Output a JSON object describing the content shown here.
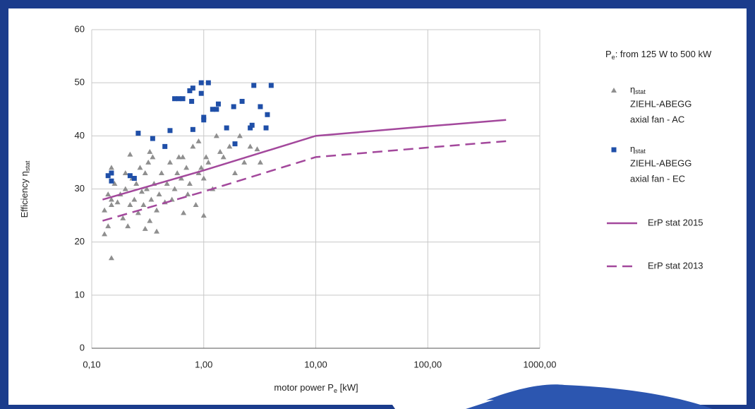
{
  "chart_data": {
    "type": "scatter-line",
    "x_scale": "log",
    "grid": true,
    "xlim": [
      0.1,
      1000
    ],
    "ylim": [
      0,
      60
    ],
    "xticks": [
      {
        "value": 0.1,
        "label": "0,10"
      },
      {
        "value": 1,
        "label": "1,00"
      },
      {
        "value": 10,
        "label": "10,00"
      },
      {
        "value": 100,
        "label": "100,00"
      },
      {
        "value": 1000,
        "label": "1000,00"
      }
    ],
    "yticks": [
      0,
      10,
      20,
      30,
      40,
      50,
      60
    ],
    "y_label": {
      "main": "Efficiency η",
      "sub": "stat"
    },
    "x_label": {
      "main": "motor power P",
      "sub": "e",
      "tail": " [kW]"
    },
    "legend_title": {
      "main": "P",
      "sub": "e",
      "tail": ": from 125 W to 500 kW"
    },
    "series": [
      {
        "kind": "scatter",
        "marker": "triangle",
        "color": "#8f8f8f",
        "name_symbol": "η",
        "name_sub": "stat",
        "name_lines": [
          "ZIEHL-ABEGG",
          "axial fan - AC"
        ],
        "x": [
          0.13,
          0.13,
          0.14,
          0.14,
          0.15,
          0.15,
          0.15,
          0.16,
          0.17,
          0.18,
          0.19,
          0.2,
          0.2,
          0.21,
          0.22,
          0.22,
          0.23,
          0.24,
          0.25,
          0.26,
          0.27,
          0.28,
          0.29,
          0.3,
          0.3,
          0.31,
          0.32,
          0.33,
          0.34,
          0.35,
          0.36,
          0.38,
          0.4,
          0.42,
          0.45,
          0.47,
          0.5,
          0.52,
          0.55,
          0.58,
          0.6,
          0.63,
          0.66,
          0.7,
          0.72,
          0.75,
          0.8,
          0.85,
          0.9,
          0.95,
          1.0,
          1.05,
          1.1,
          1.2,
          1.3,
          1.4,
          1.5,
          1.7,
          1.9,
          2.1,
          2.3,
          2.6,
          3.0,
          3.2,
          0.15,
          0.33,
          0.38,
          0.65,
          0.9,
          1.0
        ],
        "values": [
          21.5,
          26,
          29,
          23,
          34,
          28,
          17,
          31,
          27.5,
          29,
          24.5,
          33,
          30,
          23,
          36.5,
          27,
          32,
          28,
          31,
          25.5,
          34,
          29.5,
          27,
          33,
          22.5,
          30,
          35,
          24,
          28,
          36,
          31,
          26,
          29,
          33,
          27.5,
          31,
          35,
          28,
          30,
          33,
          36,
          32,
          25.5,
          34,
          29,
          31,
          38,
          27,
          33,
          34,
          32,
          36,
          35,
          30,
          40,
          37,
          36,
          38,
          33,
          40,
          35,
          38,
          37.5,
          35,
          27,
          37,
          22,
          36,
          39,
          25
        ]
      },
      {
        "kind": "scatter",
        "marker": "square",
        "color": "#1f4fa8",
        "name_symbol": "η",
        "name_sub": "stat",
        "name_lines": [
          "ZIEHL-ABEGG",
          "axial fan - EC"
        ],
        "x": [
          0.14,
          0.15,
          0.15,
          0.22,
          0.24,
          0.26,
          0.35,
          0.45,
          0.5,
          0.55,
          0.6,
          0.65,
          0.75,
          0.78,
          0.8,
          0.8,
          0.95,
          0.95,
          1.0,
          1.0,
          1.1,
          1.2,
          1.3,
          1.35,
          1.6,
          1.85,
          1.9,
          2.2,
          2.6,
          2.7,
          2.8,
          3.2,
          3.6,
          3.7,
          4.0
        ],
        "values": [
          32.5,
          33,
          31.5,
          32.5,
          32,
          40.5,
          39.5,
          38,
          41,
          47,
          47,
          47,
          48.5,
          46.5,
          49,
          41.2,
          50,
          48,
          43.5,
          43,
          50,
          45,
          45,
          46,
          41.5,
          45.5,
          38.5,
          46.5,
          41.5,
          42,
          49.5,
          45.5,
          41.5,
          44,
          49.5
        ]
      },
      {
        "kind": "line",
        "dash": false,
        "color": "#a3489c",
        "name": "ErP stat 2015",
        "x": [
          0.125,
          1,
          10,
          100,
          500
        ],
        "values": [
          28,
          33.5,
          40,
          41.8,
          43
        ]
      },
      {
        "kind": "line",
        "dash": true,
        "color": "#a3489c",
        "name": "ErP stat 2013",
        "x": [
          0.125,
          1,
          10,
          100,
          500
        ],
        "values": [
          24,
          29.5,
          36,
          37.8,
          39
        ]
      }
    ]
  }
}
